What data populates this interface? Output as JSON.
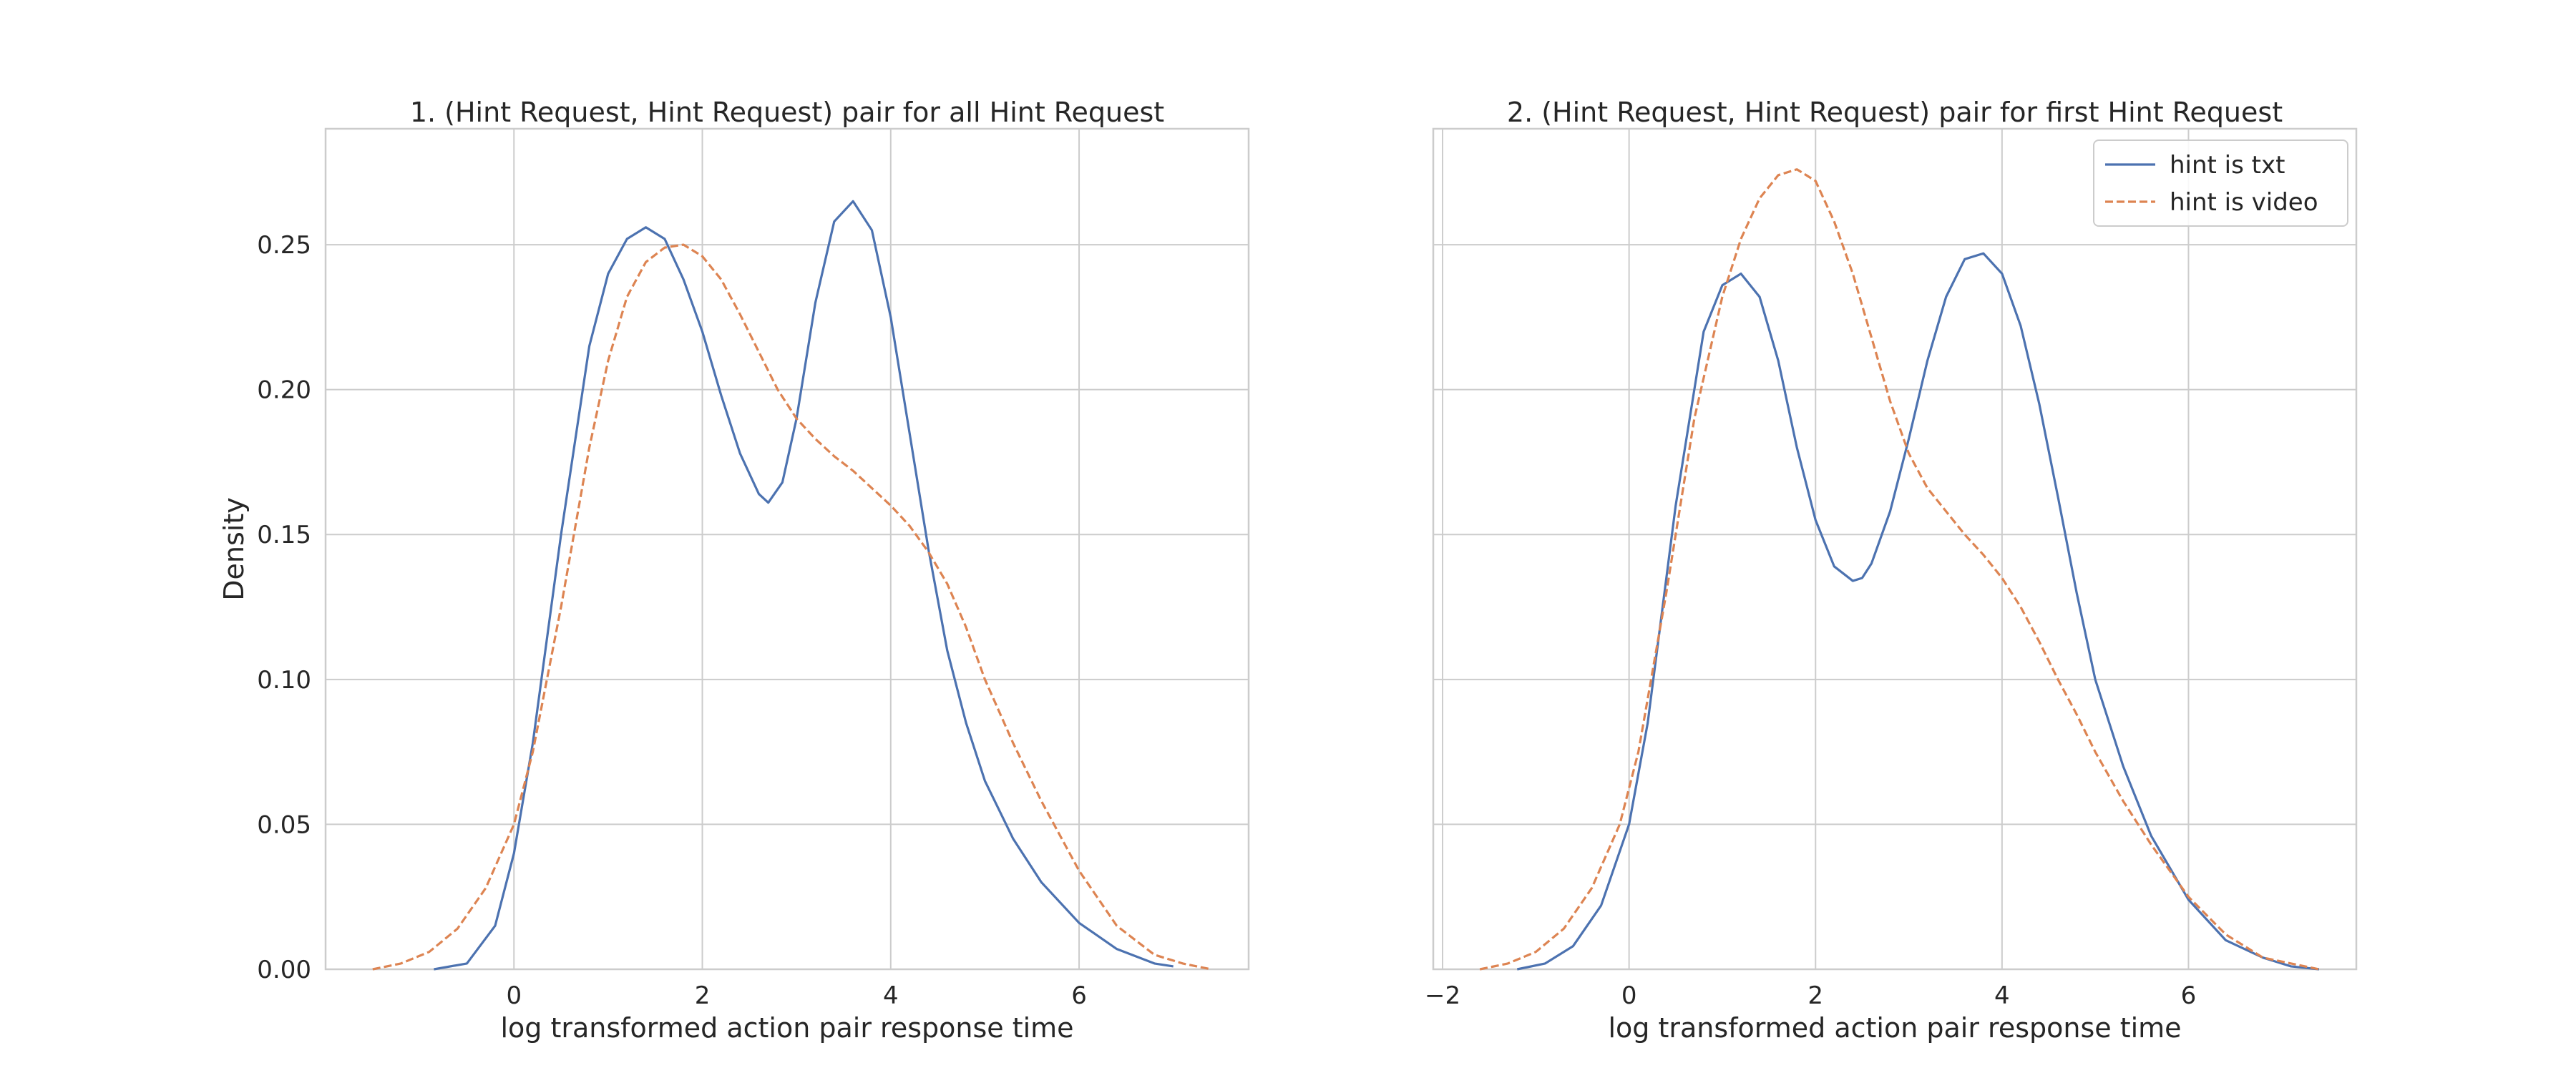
{
  "chart_data": [
    {
      "type": "line",
      "title": "1. (Hint Request, Hint Request) pair for all Hint Request",
      "xlabel": "log transformed action pair response time",
      "ylabel": "Density",
      "xlim": [
        -2.0,
        7.8
      ],
      "ylim": [
        0,
        0.29
      ],
      "xticks": [
        0,
        2,
        4,
        6
      ],
      "xtick_labels": [
        "0",
        "2",
        "4",
        "6"
      ],
      "yticks": [
        0,
        0.05,
        0.1,
        0.15,
        0.2,
        0.25
      ],
      "ytick_labels": [
        "0.00",
        "0.05",
        "0.10",
        "0.15",
        "0.20",
        "0.25"
      ],
      "grid": true,
      "legend": null,
      "series": [
        {
          "name": "hint is txt",
          "color": "#4c72b0",
          "dash": "solid",
          "x": [
            -0.85,
            -0.5,
            -0.2,
            0,
            0.2,
            0.5,
            0.8,
            1.0,
            1.2,
            1.4,
            1.6,
            1.8,
            2.0,
            2.2,
            2.4,
            2.6,
            2.7,
            2.85,
            3.0,
            3.2,
            3.4,
            3.6,
            3.8,
            4.0,
            4.2,
            4.4,
            4.6,
            4.8,
            5.0,
            5.3,
            5.6,
            6.0,
            6.4,
            6.8,
            7.0
          ],
          "y": [
            0.0,
            0.002,
            0.015,
            0.04,
            0.078,
            0.15,
            0.215,
            0.24,
            0.252,
            0.256,
            0.252,
            0.238,
            0.22,
            0.198,
            0.178,
            0.164,
            0.161,
            0.168,
            0.19,
            0.23,
            0.258,
            0.265,
            0.255,
            0.225,
            0.185,
            0.145,
            0.11,
            0.085,
            0.065,
            0.045,
            0.03,
            0.016,
            0.007,
            0.002,
            0.001
          ]
        },
        {
          "name": "hint is video",
          "color": "#dd8452",
          "dash": "dashed",
          "x": [
            -1.5,
            -1.2,
            -0.9,
            -0.6,
            -0.3,
            0,
            0.2,
            0.5,
            0.8,
            1.0,
            1.2,
            1.4,
            1.6,
            1.8,
            2.0,
            2.2,
            2.4,
            2.6,
            2.8,
            3.0,
            3.2,
            3.4,
            3.6,
            3.8,
            4.0,
            4.2,
            4.4,
            4.6,
            4.8,
            5.0,
            5.3,
            5.6,
            6.0,
            6.4,
            6.8,
            7.1,
            7.4
          ],
          "y": [
            0.0,
            0.002,
            0.006,
            0.014,
            0.028,
            0.05,
            0.075,
            0.125,
            0.18,
            0.21,
            0.232,
            0.244,
            0.249,
            0.25,
            0.246,
            0.238,
            0.226,
            0.213,
            0.2,
            0.19,
            0.183,
            0.177,
            0.172,
            0.166,
            0.16,
            0.153,
            0.144,
            0.133,
            0.118,
            0.1,
            0.078,
            0.058,
            0.034,
            0.015,
            0.005,
            0.002,
            0.0
          ]
        }
      ]
    },
    {
      "type": "line",
      "title": "2. (Hint Request, Hint Request) pair for first Hint Request",
      "xlabel": "log transformed action pair response time",
      "ylabel": "",
      "xlim": [
        -2.1,
        7.8
      ],
      "ylim": [
        0,
        0.29
      ],
      "xticks": [
        -2,
        0,
        2,
        4,
        6
      ],
      "xtick_labels": [
        "−2",
        "0",
        "2",
        "4",
        "6"
      ],
      "yticks": [
        0,
        0.05,
        0.1,
        0.15,
        0.2,
        0.25
      ],
      "ytick_labels": [],
      "grid": true,
      "legend": "top-right",
      "series": [
        {
          "name": "hint is txt",
          "color": "#4c72b0",
          "dash": "solid",
          "x": [
            -1.2,
            -0.9,
            -0.6,
            -0.3,
            0,
            0.2,
            0.5,
            0.8,
            1.0,
            1.2,
            1.4,
            1.6,
            1.8,
            2.0,
            2.2,
            2.4,
            2.5,
            2.6,
            2.8,
            3.0,
            3.2,
            3.4,
            3.6,
            3.8,
            4.0,
            4.2,
            4.4,
            4.6,
            4.8,
            5.0,
            5.3,
            5.6,
            6.0,
            6.4,
            6.8,
            7.1,
            7.4
          ],
          "y": [
            0.0,
            0.002,
            0.008,
            0.022,
            0.05,
            0.085,
            0.16,
            0.22,
            0.236,
            0.24,
            0.232,
            0.21,
            0.18,
            0.155,
            0.139,
            0.134,
            0.135,
            0.14,
            0.158,
            0.183,
            0.21,
            0.232,
            0.245,
            0.247,
            0.24,
            0.222,
            0.195,
            0.163,
            0.13,
            0.1,
            0.07,
            0.046,
            0.024,
            0.01,
            0.004,
            0.001,
            0.0
          ]
        },
        {
          "name": "hint is video",
          "color": "#dd8452",
          "dash": "dashed",
          "x": [
            -1.6,
            -1.3,
            -1.0,
            -0.7,
            -0.4,
            -0.1,
            0.1,
            0.4,
            0.7,
            1.0,
            1.2,
            1.4,
            1.6,
            1.8,
            2.0,
            2.2,
            2.4,
            2.6,
            2.8,
            3.0,
            3.2,
            3.4,
            3.6,
            3.8,
            4.0,
            4.2,
            4.4,
            4.6,
            4.8,
            5.0,
            5.3,
            5.6,
            6.0,
            6.4,
            6.8,
            7.1,
            7.4
          ],
          "y": [
            0.0,
            0.002,
            0.006,
            0.014,
            0.028,
            0.05,
            0.075,
            0.13,
            0.19,
            0.232,
            0.252,
            0.266,
            0.274,
            0.276,
            0.272,
            0.258,
            0.24,
            0.218,
            0.196,
            0.178,
            0.166,
            0.158,
            0.15,
            0.143,
            0.135,
            0.125,
            0.113,
            0.1,
            0.088,
            0.075,
            0.058,
            0.043,
            0.025,
            0.012,
            0.004,
            0.002,
            0.0
          ]
        }
      ]
    }
  ]
}
